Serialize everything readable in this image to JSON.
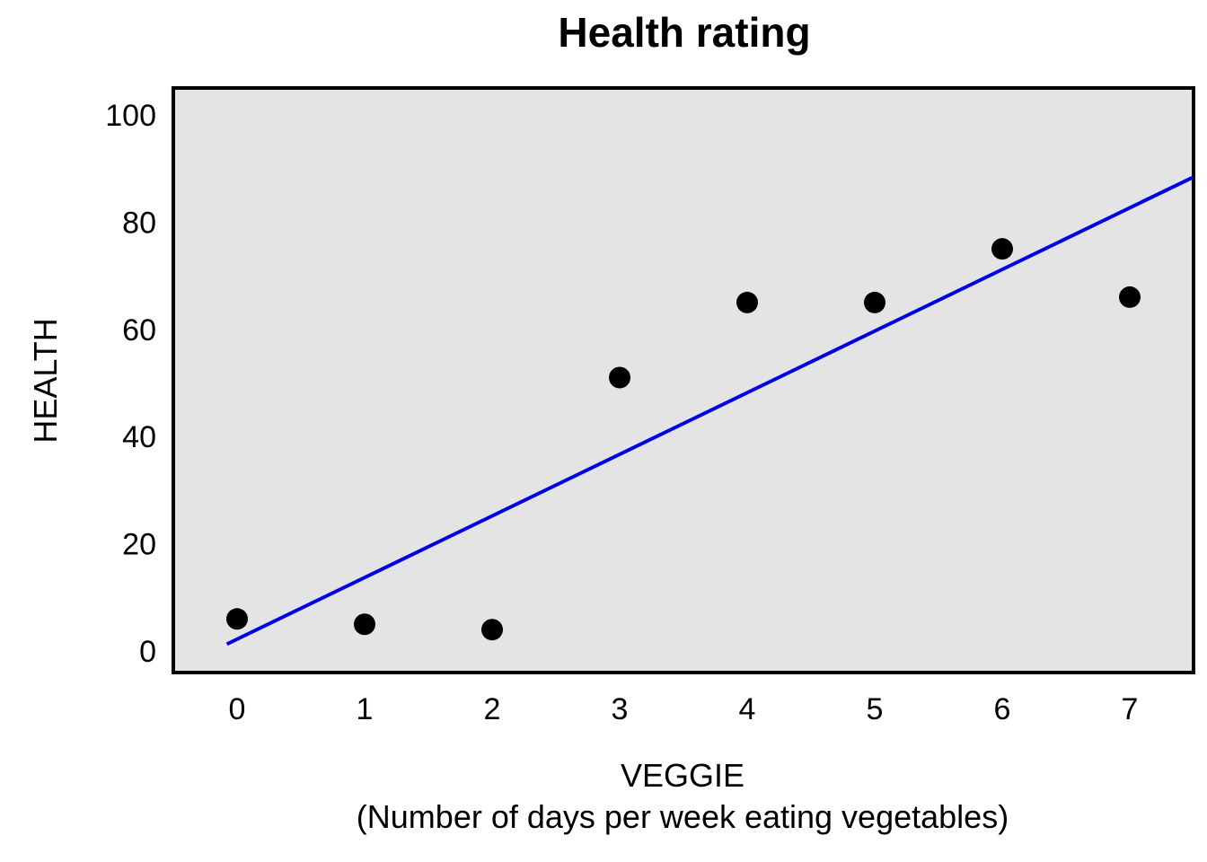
{
  "chart_data": {
    "type": "scatter",
    "title": "Health rating",
    "xlabel": "VEGGIE",
    "xlabel_sub": "(Number of days per week eating vegetables)",
    "ylabel": "HEALTH",
    "xlim": [
      -0.5,
      7.5
    ],
    "ylim": [
      -4,
      105
    ],
    "x_ticks": [
      0,
      1,
      2,
      3,
      4,
      5,
      6,
      7
    ],
    "y_ticks": [
      0,
      20,
      40,
      60,
      80,
      100
    ],
    "grid": false,
    "points": [
      {
        "x": 0,
        "y": 6
      },
      {
        "x": 1,
        "y": 5
      },
      {
        "x": 2,
        "y": 4
      },
      {
        "x": 3,
        "y": 51
      },
      {
        "x": 4,
        "y": 65
      },
      {
        "x": 5,
        "y": 65
      },
      {
        "x": 6,
        "y": 75
      },
      {
        "x": 7,
        "y": 66
      }
    ],
    "trendline": {
      "x": [
        -0.08,
        7.5
      ],
      "y": [
        1.3,
        88.4
      ],
      "color": "#0000e0"
    },
    "colors": {
      "points": "#000000",
      "plot_background": "#e4e4e4",
      "frame": "#000000"
    }
  }
}
